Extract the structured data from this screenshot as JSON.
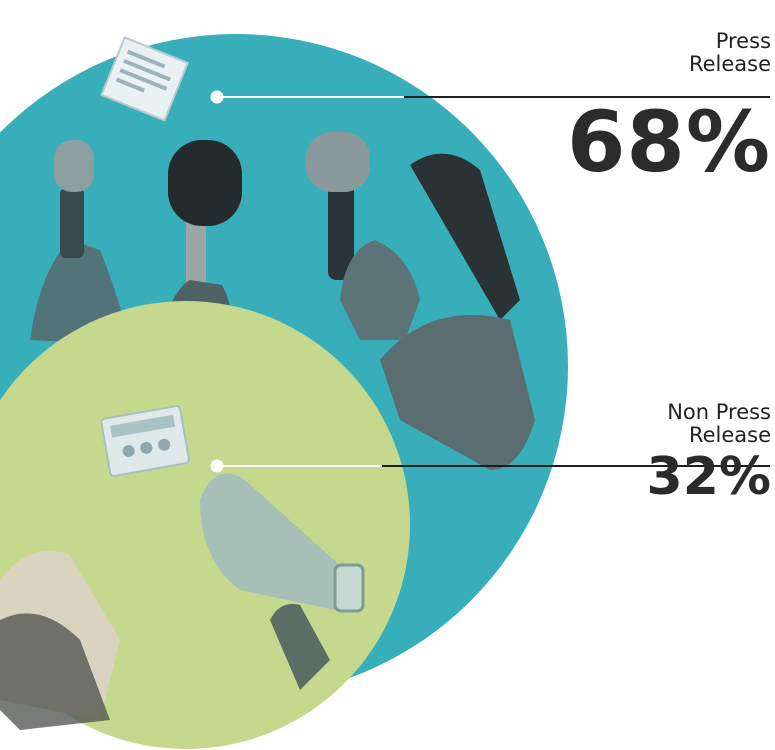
{
  "chart_data": {
    "type": "pie",
    "categories": [
      "Press Release",
      "Non Press Release"
    ],
    "values": [
      68,
      32
    ],
    "value_labels": [
      "68%",
      "32%"
    ],
    "colors": {
      "Press Release": "#39aebb",
      "Non Press Release": "#c4d98d"
    }
  },
  "labels": {
    "press": {
      "line1": "Press",
      "line2": "Release",
      "value": "68%"
    },
    "nonpress": {
      "line1": "Non Press",
      "line2": "Release",
      "value": "32%"
    }
  },
  "icons": [
    "paper-icon",
    "microphones-illustration",
    "newspaper-icon",
    "megaphone-illustration",
    "newspaper-stack-illustration"
  ]
}
